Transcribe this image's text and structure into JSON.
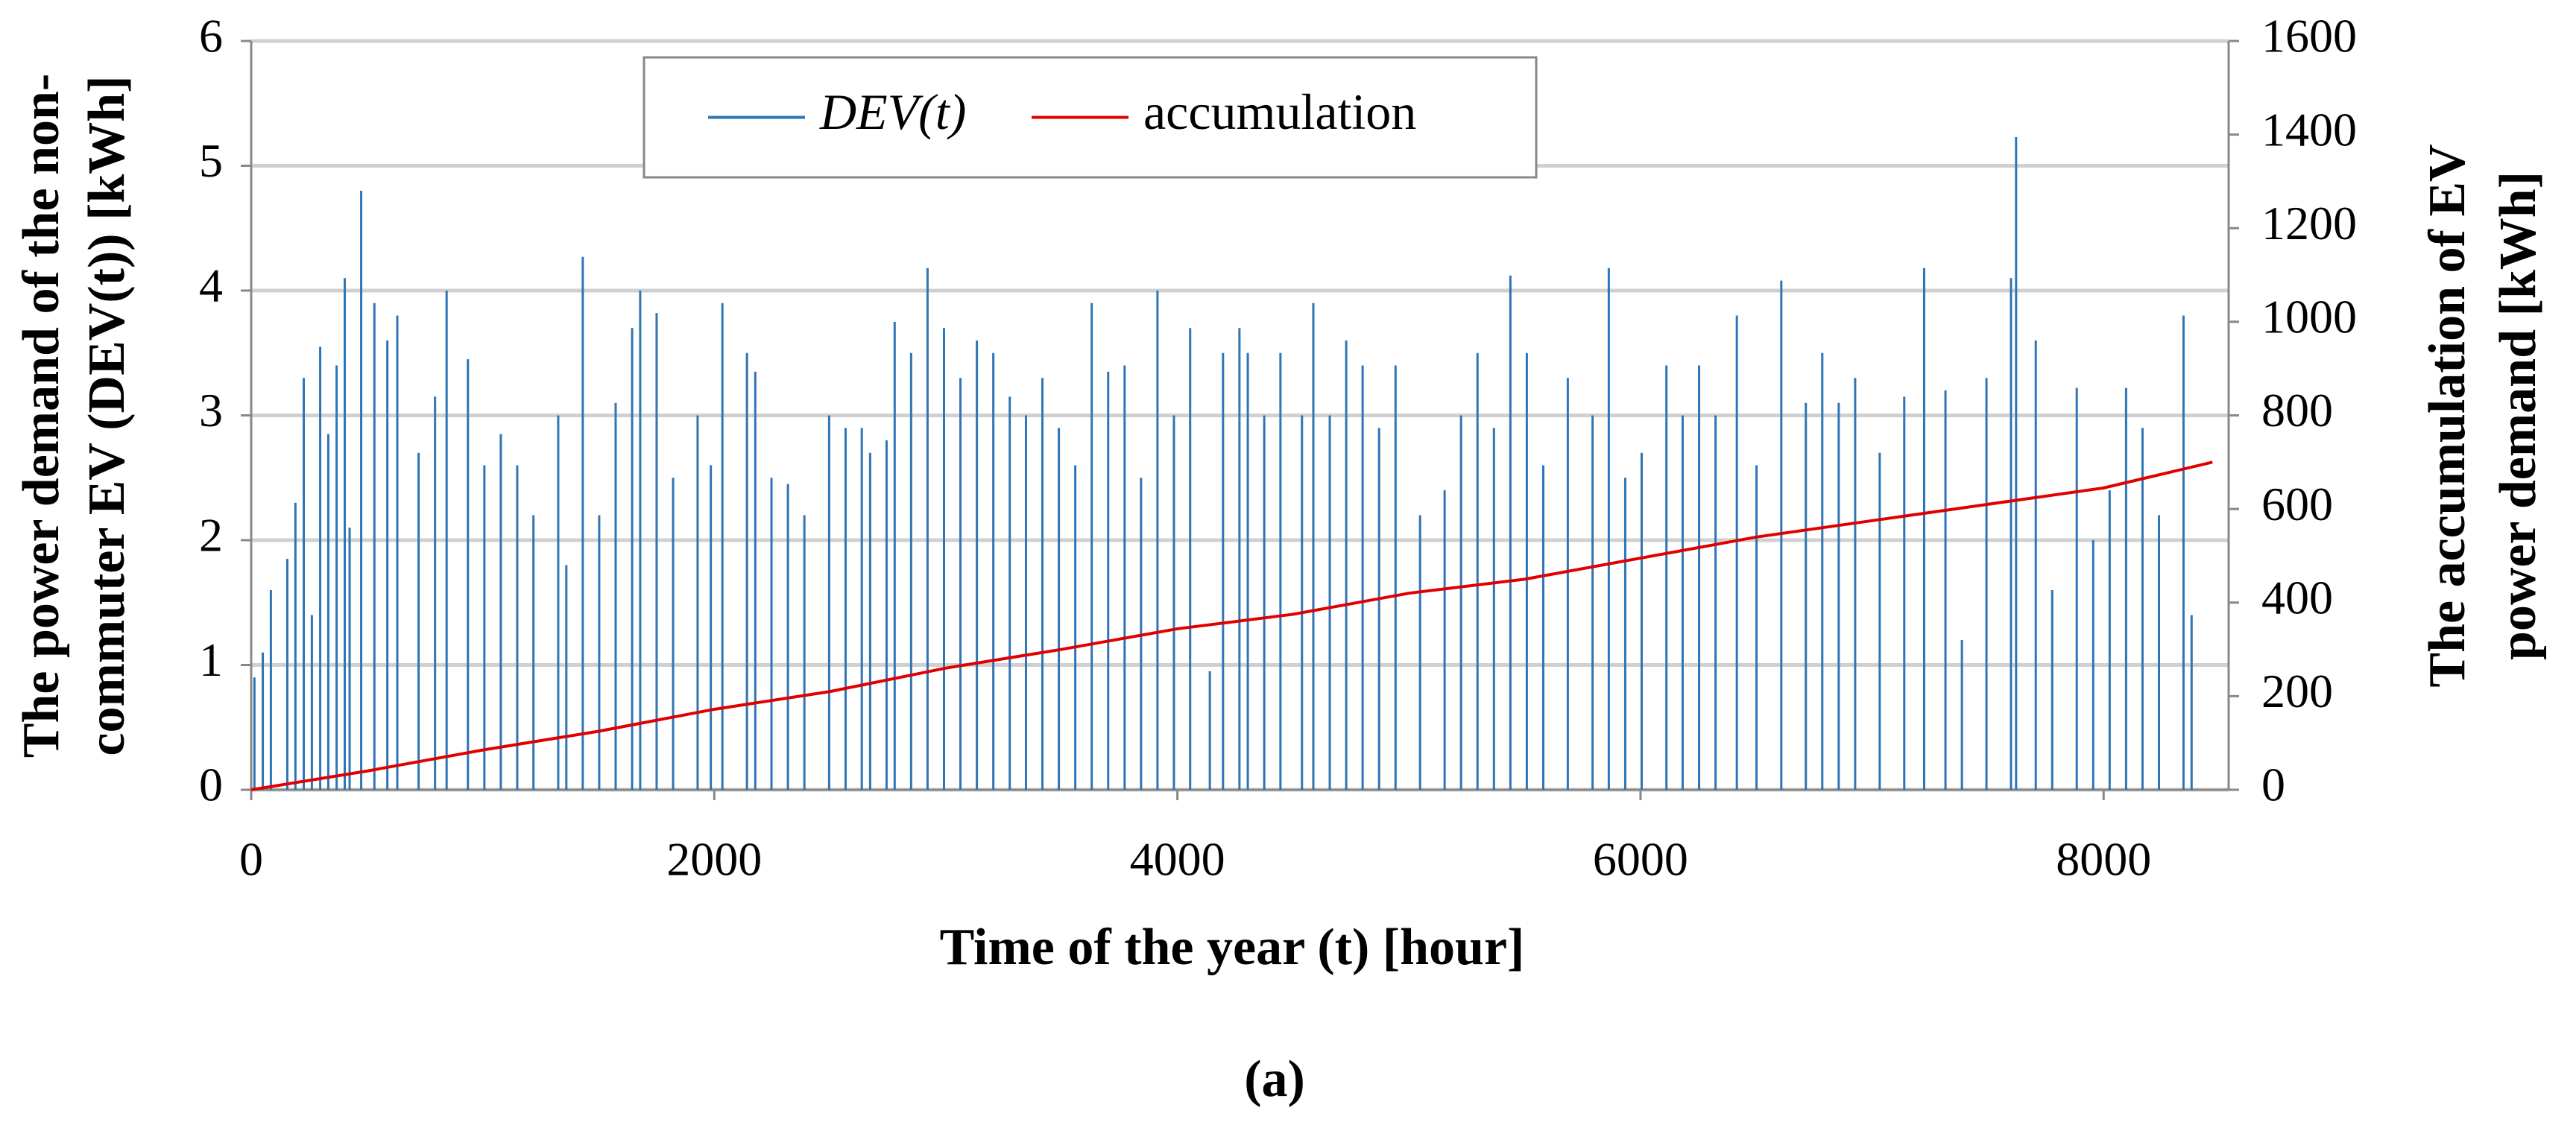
{
  "chart_data": {
    "type": "line",
    "x_label": "Time of the year (t) [hour]",
    "y_label": [
      "The power demand of the non-",
      "commuter EV (DEV(t)) [kWh]"
    ],
    "y2_label": [
      "The accumulation of EV",
      "power demand [kWh]"
    ],
    "caption": "(a)",
    "xlim": [
      0,
      8540
    ],
    "xticks": [
      0,
      2000,
      4000,
      6000,
      8000
    ],
    "ylim": [
      0,
      6
    ],
    "yticks": [
      0,
      1,
      2,
      3,
      4,
      5,
      6
    ],
    "y2lim": [
      0,
      1600
    ],
    "y2ticks": [
      0,
      200,
      400,
      600,
      800,
      1000,
      1200,
      1400,
      1600
    ],
    "grid": true,
    "legend": "top",
    "series": [
      {
        "name": "DEV(t)",
        "type": "stem",
        "color": "#2e75b6",
        "x": [
          14,
          50,
          85,
          156,
          191,
          227,
          262,
          298,
          333,
          369,
          404,
          425,
          475,
          532,
          588,
          631,
          723,
          794,
          844,
          936,
          1007,
          1078,
          1149,
          1219,
          1326,
          1361,
          1432,
          1503,
          1574,
          1645,
          1680,
          1751,
          1822,
          1928,
          1985,
          2035,
          2141,
          2177,
          2247,
          2318,
          2389,
          2496,
          2567,
          2637,
          2673,
          2744,
          2779,
          2850,
          2921,
          2992,
          3063,
          3134,
          3205,
          3276,
          3346,
          3417,
          3488,
          3559,
          3630,
          3701,
          3772,
          3843,
          3914,
          3985,
          4055,
          4140,
          4197,
          4268,
          4304,
          4375,
          4445,
          4538,
          4587,
          4658,
          4729,
          4800,
          4871,
          4942,
          5048,
          5154,
          5225,
          5296,
          5367,
          5438,
          5509,
          5580,
          5686,
          5793,
          5863,
          5934,
          6005,
          6112,
          6182,
          6253,
          6324,
          6416,
          6501,
          6608,
          6714,
          6785,
          6856,
          6927,
          7033,
          7139,
          7225,
          7317,
          7388,
          7494,
          7600,
          7622,
          7707,
          7778,
          7884,
          7955,
          8026,
          8097,
          8168,
          8239,
          8345,
          8380
        ],
        "values": [
          0.9,
          1.1,
          1.6,
          1.85,
          2.3,
          3.3,
          1.4,
          3.55,
          2.85,
          3.4,
          4.1,
          2.1,
          4.8,
          3.9,
          3.6,
          3.8,
          2.7,
          3.15,
          4.0,
          3.45,
          2.6,
          2.85,
          2.6,
          2.2,
          3.0,
          1.8,
          4.27,
          2.2,
          3.1,
          3.7,
          4.0,
          3.82,
          2.5,
          3.0,
          2.6,
          3.9,
          3.5,
          3.35,
          2.5,
          2.45,
          2.2,
          3.0,
          2.9,
          2.9,
          2.7,
          2.8,
          3.75,
          3.5,
          4.18,
          3.7,
          3.3,
          3.6,
          3.5,
          3.15,
          3.0,
          3.3,
          2.9,
          2.6,
          3.9,
          3.35,
          3.4,
          2.5,
          4.0,
          3.0,
          3.7,
          0.95,
          3.5,
          3.7,
          3.5,
          3.0,
          3.5,
          3.0,
          3.9,
          3.0,
          3.6,
          3.4,
          2.9,
          3.4,
          2.2,
          2.4,
          3.0,
          3.5,
          2.9,
          4.12,
          3.5,
          2.6,
          3.3,
          3.0,
          4.18,
          2.5,
          2.7,
          3.4,
          3.0,
          3.4,
          3.0,
          3.8,
          2.6,
          4.08,
          3.1,
          3.5,
          3.1,
          3.3,
          2.7,
          3.15,
          4.18,
          3.2,
          1.2,
          3.3,
          4.1,
          5.23,
          3.6,
          1.6,
          3.22,
          2.0,
          2.4,
          3.22,
          2.9,
          2.2,
          3.8,
          1.4
        ]
      },
      {
        "name": "accumulation",
        "type": "line",
        "axis": "y2",
        "color": "#e00000",
        "x": [
          0,
          500,
          1000,
          1500,
          2000,
          2500,
          3000,
          3500,
          4000,
          4500,
          5000,
          5500,
          6000,
          6500,
          7000,
          7500,
          8000,
          8470
        ],
        "values": [
          0,
          40,
          85,
          125,
          172,
          210,
          260,
          300,
          344,
          375,
          420,
          450,
          495,
          540,
          575,
          610,
          645,
          700
        ]
      }
    ]
  }
}
